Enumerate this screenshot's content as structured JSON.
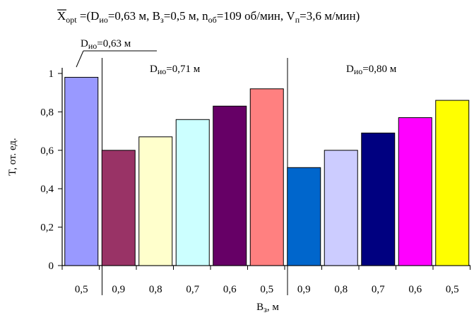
{
  "chart_data": {
    "type": "bar",
    "title": "Xopt =(Dио=0,63 м, Bз=0,5 м, nоб=109 об/мин, Vп=3,6 м/мин)",
    "title_parts": {
      "x": "X",
      "sub_opt": "opt",
      "p1": " =(D",
      "sub_io": "ио",
      "p2": "=0,63 м, B",
      "sub_z": "з",
      "p3": "=0,5 м, n",
      "sub_ob": "об",
      "p4": "=109 об/мин, V",
      "sub_p": "п",
      "p5": "=3,6 м/мин)"
    },
    "xlabel": "Bз, м",
    "ylabel": "T, от. ед.",
    "ylim": [
      0,
      1.1
    ],
    "yticks": [
      0,
      0.2,
      0.4,
      0.6,
      0.8,
      1
    ],
    "ytick_labels": [
      "0",
      "0,2",
      "0,4",
      "0,6",
      "0,8",
      "1"
    ],
    "grid": false,
    "categories": [
      "0,5",
      "0,9",
      "0,8",
      "0,7",
      "0,6",
      "0,5",
      "0,9",
      "0,8",
      "0,7",
      "0,6",
      "0,5"
    ],
    "values": [
      0.98,
      0.6,
      0.67,
      0.76,
      0.83,
      0.92,
      0.51,
      0.6,
      0.69,
      0.77,
      0.86
    ],
    "colors": [
      "#9999ff",
      "#993366",
      "#ffffcc",
      "#ccffff",
      "#660066",
      "#ff8080",
      "#0066cc",
      "#ccccff",
      "#000080",
      "#ff00ff",
      "#ffff00"
    ],
    "groups": [
      {
        "label": "Dио=0,63 м",
        "start": 0,
        "end": 0
      },
      {
        "label": "Dио=0,71 м",
        "start": 1,
        "end": 5
      },
      {
        "label": "Dио=0,80 м",
        "start": 6,
        "end": 10
      }
    ]
  }
}
